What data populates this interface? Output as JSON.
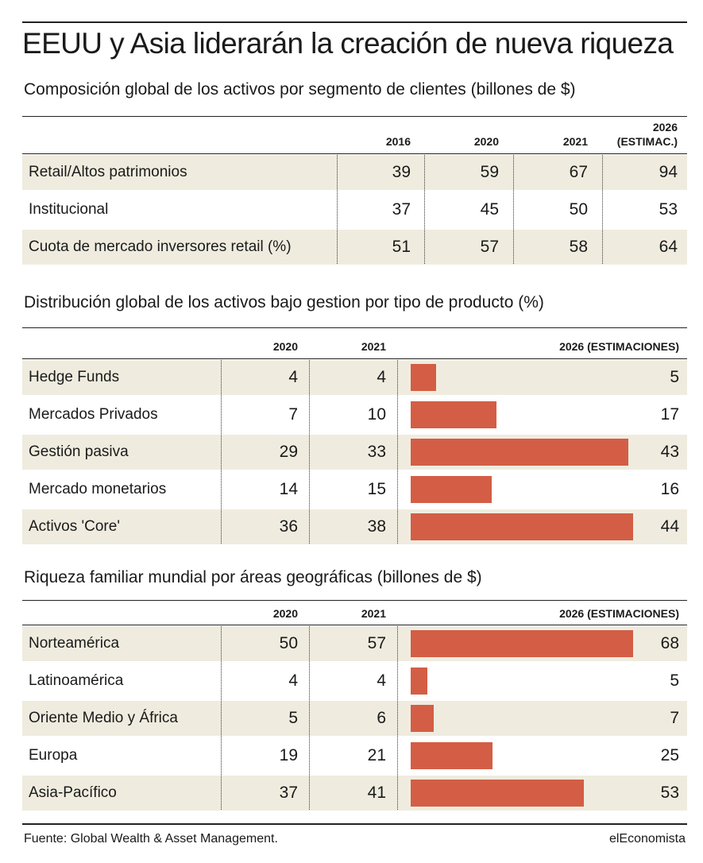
{
  "title": "EEUU y Asia liderarán la creación de nueva riqueza",
  "chart_data": [
    {
      "type": "table",
      "title": "Composición global de los activos por segmento de clientes (billones de $)",
      "columns": [
        "2016",
        "2020",
        "2021",
        "2026",
        "(ESTIMAC.)"
      ],
      "rows": [
        {
          "label": "Retail/Altos patrimonios",
          "values": [
            39,
            59,
            67,
            94
          ]
        },
        {
          "label": "Institucional",
          "values": [
            37,
            45,
            50,
            53
          ]
        },
        {
          "label": "Cuota de mercado inversores retail (%)",
          "values": [
            51,
            57,
            58,
            64
          ]
        }
      ]
    },
    {
      "type": "bar",
      "title": "Distribución global de los activos bajo gestion por tipo de producto (%)",
      "columns": [
        "2020",
        "2021",
        "2026 (ESTIMACIONES)"
      ],
      "categories": [
        "Hedge Funds",
        "Mercados Privados",
        "Gestión pasiva",
        "Mercado monetarios",
        "Activos 'Core'"
      ],
      "series": [
        {
          "values": [
            4,
            7,
            29,
            14,
            36
          ]
        },
        {
          "values": [
            4,
            10,
            33,
            15,
            38
          ]
        },
        {
          "values": [
            5,
            17,
            43,
            16,
            44
          ]
        }
      ],
      "bar_series": 2,
      "bar_max": 44
    },
    {
      "type": "bar",
      "title": "Riqueza familiar mundial por áreas geográficas (billones de $)",
      "columns": [
        "2020",
        "2021",
        "2026 (ESTIMACIONES)"
      ],
      "categories": [
        "Norteamérica",
        "Latinoamérica",
        "Oriente Medio y África",
        "Europa",
        "Asia-Pacífico"
      ],
      "series": [
        {
          "values": [
            50,
            4,
            5,
            19,
            37
          ]
        },
        {
          "values": [
            57,
            4,
            6,
            21,
            41
          ]
        },
        {
          "values": [
            68,
            5,
            7,
            25,
            53
          ]
        }
      ],
      "bar_series": 2,
      "bar_max": 68
    }
  ],
  "footer": {
    "source": "Fuente:  Global Wealth & Asset Management.",
    "brand": "elEconomista"
  },
  "colors": {
    "bar": "#d35e45",
    "row_shade": "#efecdf"
  }
}
